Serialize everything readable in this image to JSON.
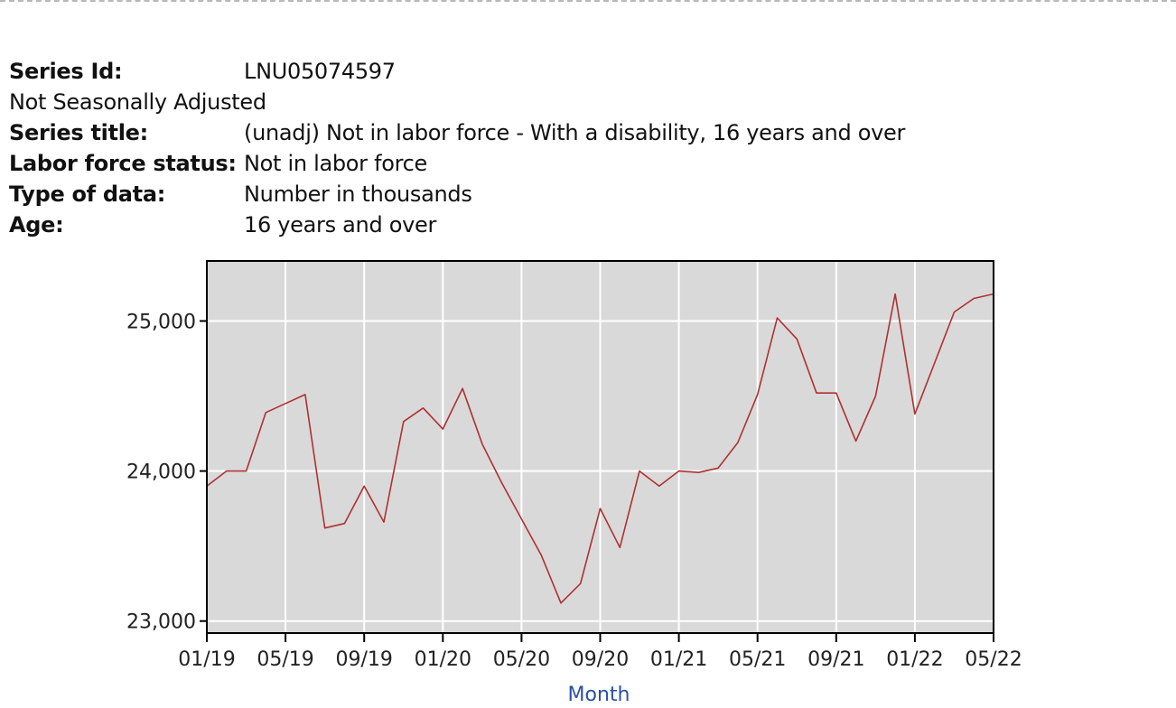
{
  "meta": {
    "series_id_label": "Series Id:",
    "series_id_value": "LNU05074597",
    "seasonal_note": "Not Seasonally Adjusted",
    "series_title_label": "Series title:",
    "series_title_value": "(unadj) Not in labor force - With a disability, 16 years and over",
    "labor_force_label": "Labor force status:",
    "labor_force_value": "Not in labor force",
    "type_label": "Type of data:",
    "type_value": "Number in thousands",
    "age_label": "Age:",
    "age_value": "16 years and over"
  },
  "colors": {
    "plot_bg": "#d9d9d9",
    "grid": "#ffffff",
    "line": "#b03030",
    "axis": "#000000",
    "xlabel": "#2a4fa8"
  },
  "chart_data": {
    "type": "line",
    "title": "",
    "xlabel": "Month",
    "ylabel": "",
    "ylim": [
      22920,
      25400
    ],
    "yticks": [
      23000,
      24000,
      25000
    ],
    "ytick_labels": [
      "23,000",
      "24,000",
      "25,000"
    ],
    "xtick_labels": [
      "01/19",
      "05/19",
      "09/19",
      "01/20",
      "05/20",
      "09/20",
      "01/21",
      "05/21",
      "09/21",
      "01/22",
      "05/22"
    ],
    "xtick_index": [
      0,
      4,
      8,
      12,
      16,
      20,
      24,
      28,
      32,
      36,
      40
    ],
    "x": [
      "01/19",
      "02/19",
      "03/19",
      "04/19",
      "05/19",
      "06/19",
      "07/19",
      "08/19",
      "09/19",
      "10/19",
      "11/19",
      "12/19",
      "01/20",
      "02/20",
      "03/20",
      "04/20",
      "05/20",
      "06/20",
      "07/20",
      "08/20",
      "09/20",
      "10/20",
      "11/20",
      "12/20",
      "01/21",
      "02/21",
      "03/21",
      "04/21",
      "05/21",
      "06/21",
      "07/21",
      "08/21",
      "09/21",
      "10/21",
      "11/21",
      "12/21",
      "01/22",
      "02/22",
      "03/22",
      "04/22",
      "05/22"
    ],
    "series": [
      {
        "name": "LNU05074597",
        "values": [
          23900,
          24000,
          24000,
          24390,
          24450,
          24510,
          23620,
          23650,
          23900,
          23660,
          24330,
          24420,
          24280,
          24550,
          24180,
          23920,
          23680,
          23440,
          23120,
          23250,
          23750,
          23490,
          24000,
          23900,
          24000,
          23990,
          24020,
          24190,
          24510,
          25020,
          24880,
          24520,
          24520,
          24200,
          24500,
          25180,
          24380,
          24720,
          25060,
          25150,
          25180
        ]
      }
    ]
  }
}
